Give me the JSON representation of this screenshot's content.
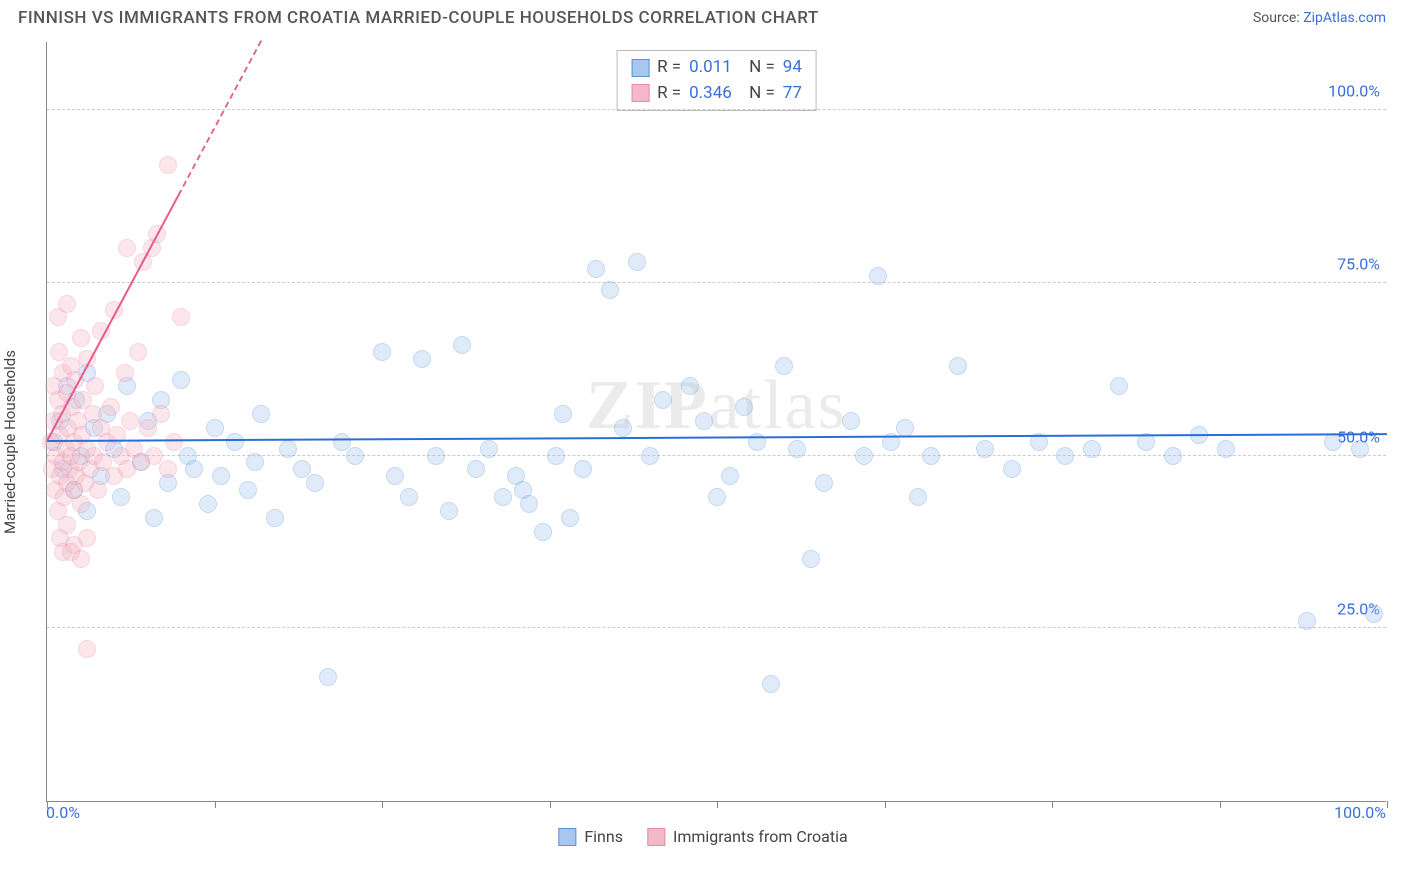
{
  "title": "FINNISH VS IMMIGRANTS FROM CROATIA MARRIED-COUPLE HOUSEHOLDS CORRELATION CHART",
  "source_prefix": "Source: ",
  "source_name": "ZipAtlas.com",
  "ylabel": "Married-couple Households",
  "watermark_bold": "ZIP",
  "watermark_rest": "atlas",
  "chart": {
    "type": "scatter",
    "xlim": [
      0,
      100
    ],
    "ylim": [
      0,
      110
    ],
    "y_ticks": [
      25,
      50,
      75,
      100
    ],
    "y_tick_labels": [
      "25.0%",
      "50.0%",
      "75.0%",
      "100.0%"
    ],
    "x_tick_positions": [
      0,
      12.5,
      25,
      37.5,
      50,
      62.5,
      75,
      87.5,
      100
    ],
    "x_min_label": "0.0%",
    "x_max_label": "100.0%",
    "background_color": "#ffffff",
    "grid_color": "#cccccc",
    "axis_color": "#888888",
    "tick_label_color": "#3a6fd8",
    "point_radius": 9,
    "point_opacity": 0.35,
    "trend_width": 2
  },
  "series": [
    {
      "name": "Finns",
      "color_fill": "#a7c7f0",
      "color_stroke": "#5b93d6",
      "trend_color": "#2a6fd6",
      "trend": {
        "x1": 0,
        "y1": 52,
        "x2": 100,
        "y2": 53,
        "dashed_from_x": null
      },
      "R_label": "R =",
      "R": "0.011",
      "N_label": "N =",
      "N": "94",
      "points": [
        [
          0.5,
          52
        ],
        [
          1,
          55
        ],
        [
          1.2,
          48
        ],
        [
          1.5,
          60
        ],
        [
          2,
          45
        ],
        [
          2.2,
          58
        ],
        [
          2.5,
          50
        ],
        [
          3,
          62
        ],
        [
          3,
          42
        ],
        [
          3.5,
          54
        ],
        [
          4,
          47
        ],
        [
          4.5,
          56
        ],
        [
          5,
          51
        ],
        [
          5.5,
          44
        ],
        [
          6,
          60
        ],
        [
          7,
          49
        ],
        [
          7.5,
          55
        ],
        [
          8,
          41
        ],
        [
          8.5,
          58
        ],
        [
          9,
          46
        ],
        [
          10,
          61
        ],
        [
          10.5,
          50
        ],
        [
          11,
          48
        ],
        [
          12,
          43
        ],
        [
          12.5,
          54
        ],
        [
          13,
          47
        ],
        [
          14,
          52
        ],
        [
          15,
          45
        ],
        [
          15.5,
          49
        ],
        [
          16,
          56
        ],
        [
          17,
          41
        ],
        [
          18,
          51
        ],
        [
          19,
          48
        ],
        [
          20,
          46
        ],
        [
          21,
          18
        ],
        [
          22,
          52
        ],
        [
          23,
          50
        ],
        [
          25,
          65
        ],
        [
          26,
          47
        ],
        [
          27,
          44
        ],
        [
          28,
          64
        ],
        [
          29,
          50
        ],
        [
          30,
          42
        ],
        [
          31,
          66
        ],
        [
          32,
          48
        ],
        [
          33,
          51
        ],
        [
          34,
          44
        ],
        [
          35,
          47
        ],
        [
          35.5,
          45
        ],
        [
          36,
          43
        ],
        [
          37,
          39
        ],
        [
          38,
          50
        ],
        [
          38.5,
          56
        ],
        [
          39,
          41
        ],
        [
          40,
          48
        ],
        [
          41,
          77
        ],
        [
          42,
          74
        ],
        [
          43,
          54
        ],
        [
          44,
          78
        ],
        [
          45,
          50
        ],
        [
          46,
          58
        ],
        [
          48,
          60
        ],
        [
          49,
          55
        ],
        [
          50,
          44
        ],
        [
          51,
          47
        ],
        [
          52,
          57
        ],
        [
          53,
          52
        ],
        [
          54,
          17
        ],
        [
          55,
          63
        ],
        [
          56,
          51
        ],
        [
          57,
          35
        ],
        [
          58,
          46
        ],
        [
          60,
          55
        ],
        [
          61,
          50
        ],
        [
          62,
          76
        ],
        [
          63,
          52
        ],
        [
          64,
          54
        ],
        [
          65,
          44
        ],
        [
          66,
          50
        ],
        [
          68,
          63
        ],
        [
          70,
          51
        ],
        [
          72,
          48
        ],
        [
          74,
          52
        ],
        [
          76,
          50
        ],
        [
          78,
          51
        ],
        [
          80,
          60
        ],
        [
          82,
          52
        ],
        [
          84,
          50
        ],
        [
          86,
          53
        ],
        [
          88,
          51
        ],
        [
          94,
          26
        ],
        [
          96,
          52
        ],
        [
          98,
          51
        ],
        [
          99,
          27
        ]
      ]
    },
    {
      "name": "Immigrants from Croatia",
      "color_fill": "#f5b8c8",
      "color_stroke": "#e88aa3",
      "trend_color": "#e85a8a",
      "trend": {
        "x1": 0,
        "y1": 52,
        "x2": 16,
        "y2": 110,
        "dashed_from_x": 10
      },
      "R_label": "R =",
      "R": "0.346",
      "N_label": "N =",
      "N": "77",
      "points": [
        [
          0.3,
          52
        ],
        [
          0.4,
          48
        ],
        [
          0.5,
          55
        ],
        [
          0.5,
          60
        ],
        [
          0.6,
          45
        ],
        [
          0.7,
          50
        ],
        [
          0.8,
          58
        ],
        [
          0.8,
          42
        ],
        [
          0.9,
          65
        ],
        [
          1,
          47
        ],
        [
          1,
          53
        ],
        [
          1.1,
          56
        ],
        [
          1.2,
          49
        ],
        [
          1.2,
          62
        ],
        [
          1.3,
          44
        ],
        [
          1.4,
          51
        ],
        [
          1.5,
          59
        ],
        [
          1.5,
          46
        ],
        [
          1.6,
          54
        ],
        [
          1.7,
          48
        ],
        [
          1.8,
          63
        ],
        [
          1.8,
          50
        ],
        [
          1.9,
          57
        ],
        [
          2,
          45
        ],
        [
          2,
          52
        ],
        [
          2.1,
          61
        ],
        [
          2.2,
          47
        ],
        [
          2.3,
          55
        ],
        [
          2.4,
          49
        ],
        [
          2.5,
          67
        ],
        [
          2.5,
          43
        ],
        [
          2.6,
          53
        ],
        [
          2.7,
          58
        ],
        [
          2.8,
          46
        ],
        [
          3,
          51
        ],
        [
          3,
          64
        ],
        [
          3.2,
          48
        ],
        [
          3.4,
          56
        ],
        [
          3.5,
          50
        ],
        [
          3.6,
          60
        ],
        [
          3.8,
          45
        ],
        [
          4,
          54
        ],
        [
          4,
          68
        ],
        [
          4.2,
          49
        ],
        [
          4.5,
          52
        ],
        [
          4.8,
          57
        ],
        [
          5,
          47
        ],
        [
          5,
          71
        ],
        [
          5.2,
          53
        ],
        [
          5.5,
          50
        ],
        [
          5.8,
          62
        ],
        [
          6,
          48
        ],
        [
          6,
          80
        ],
        [
          6.2,
          55
        ],
        [
          6.5,
          51
        ],
        [
          6.8,
          65
        ],
        [
          7,
          49
        ],
        [
          7.2,
          78
        ],
        [
          7.5,
          54
        ],
        [
          7.8,
          80
        ],
        [
          8,
          50
        ],
        [
          8.2,
          82
        ],
        [
          8.5,
          56
        ],
        [
          9,
          48
        ],
        [
          9,
          92
        ],
        [
          9.5,
          52
        ],
        [
          10,
          70
        ],
        [
          1,
          38
        ],
        [
          1.2,
          36
        ],
        [
          1.5,
          40
        ],
        [
          2,
          37
        ],
        [
          2.5,
          35
        ],
        [
          3,
          38
        ],
        [
          1.8,
          36
        ],
        [
          3,
          22
        ],
        [
          0.8,
          70
        ],
        [
          1.5,
          72
        ]
      ]
    }
  ],
  "bottom_legend": [
    {
      "label": "Finns",
      "fill": "#a7c7f0",
      "stroke": "#5b93d6"
    },
    {
      "label": "Immigrants from Croatia",
      "fill": "#f5b8c8",
      "stroke": "#e88aa3"
    }
  ]
}
